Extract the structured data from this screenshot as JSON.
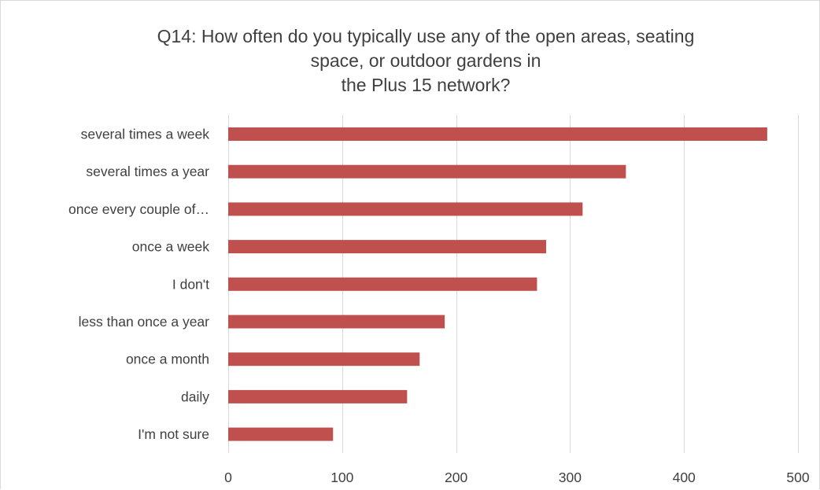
{
  "chart_data": {
    "type": "bar",
    "orientation": "horizontal",
    "title_lines": [
      "Q14: How often do you typically use any of the open areas, seating",
      "space, or outdoor gardens in",
      "the Plus 15 network?"
    ],
    "categories": [
      "several times a week",
      "several times a year",
      "once every couple of…",
      "once a week",
      "I don't",
      "less than once a year",
      "once a month",
      "daily",
      "I'm not sure"
    ],
    "values": [
      473,
      349,
      311,
      279,
      271,
      190,
      168,
      157,
      92
    ],
    "xlim": [
      0,
      500
    ],
    "x_ticks": [
      "0",
      "100",
      "200",
      "300",
      "400",
      "500"
    ],
    "x_tick_values": [
      0,
      100,
      200,
      300,
      400,
      500
    ],
    "grid": true,
    "legend": "none",
    "bar_color": "#c0504d",
    "grid_color": "#d9d9d9",
    "text_color": "#404040"
  }
}
